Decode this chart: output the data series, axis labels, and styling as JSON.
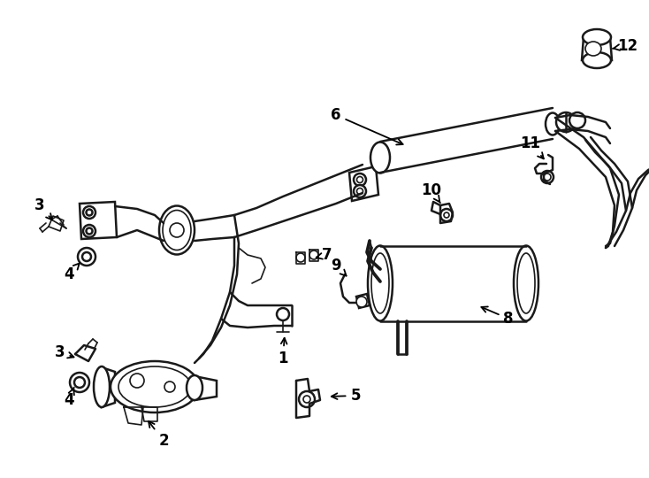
{
  "bg_color": "#ffffff",
  "line_color": "#1a1a1a",
  "lw_main": 1.8,
  "lw_thin": 1.2,
  "label_fontsize": 12,
  "figsize": [
    7.34,
    5.4
  ],
  "dpi": 100,
  "xlim": [
    0,
    734
  ],
  "ylim": [
    0,
    540
  ]
}
